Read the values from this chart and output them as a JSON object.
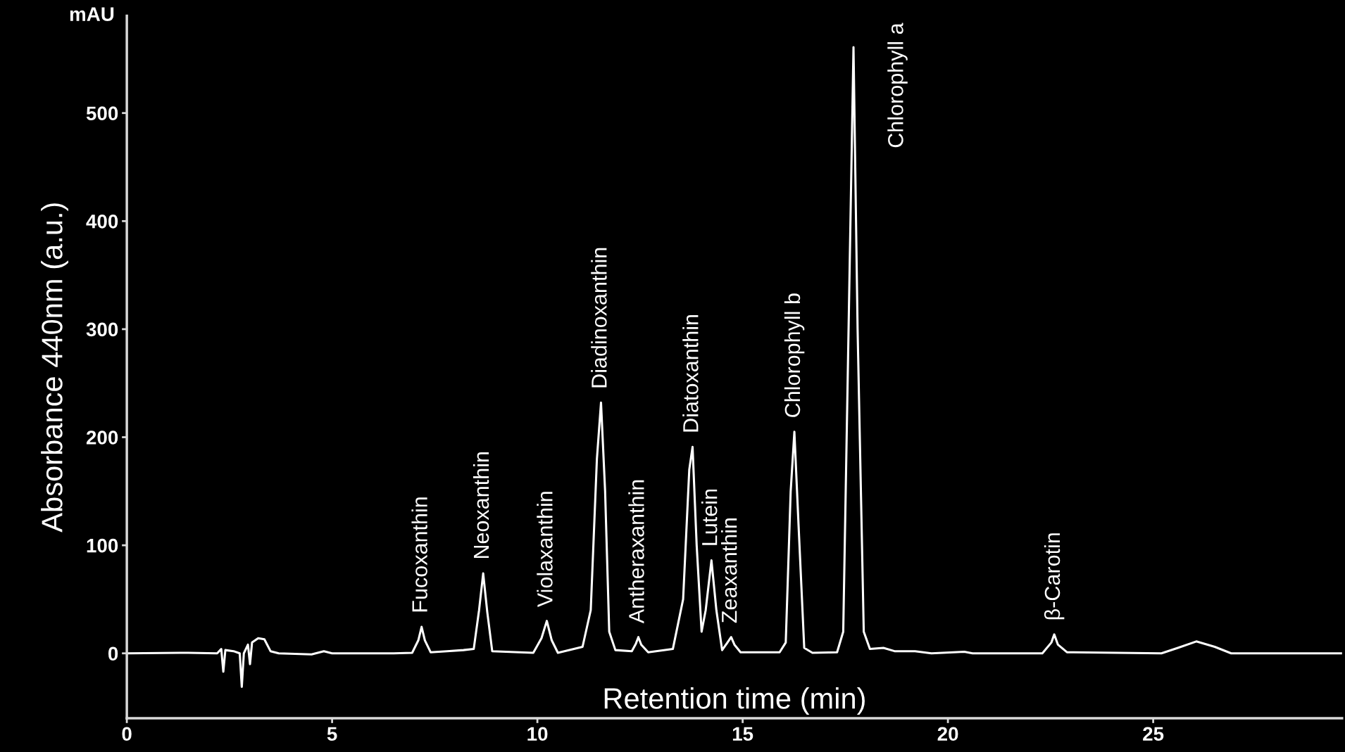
{
  "chart_data": {
    "type": "line",
    "xlabel": "Retention time (min)",
    "ylabel": "Absorbance 440nm (a.u.)",
    "xlim": [
      0,
      29.6
    ],
    "ylim": [
      -60,
      590
    ],
    "xticks": [
      0,
      5,
      10,
      15,
      20,
      25
    ],
    "yticks": [
      0,
      100,
      200,
      300,
      400,
      500
    ],
    "grid": false,
    "legend": false,
    "marker": "none",
    "line_style": "solid",
    "series": [
      {
        "color": "#ffffff",
        "x": [
          0,
          1.5,
          2.2,
          2.3,
          2.35,
          2.4,
          2.6,
          2.75,
          2.8,
          2.85,
          2.95,
          3.0,
          3.05,
          3.2,
          3.35,
          3.5,
          3.7,
          4.5,
          4.8,
          5.0,
          6.5,
          6.95,
          7.1,
          7.18,
          7.26,
          7.4,
          7.8,
          8.2,
          8.45,
          8.58,
          8.68,
          8.78,
          8.9,
          9.9,
          10.1,
          10.23,
          10.35,
          10.5,
          11.1,
          11.3,
          11.45,
          11.55,
          11.65,
          11.75,
          11.9,
          12.3,
          12.4,
          12.46,
          12.53,
          12.7,
          13.3,
          13.55,
          13.7,
          13.78,
          13.88,
          14.0,
          14.1,
          14.24,
          14.36,
          14.5,
          14.63,
          14.72,
          14.8,
          14.95,
          15.9,
          16.05,
          16.17,
          16.26,
          16.36,
          16.5,
          16.7,
          17.3,
          17.45,
          17.58,
          17.7,
          17.8,
          17.95,
          18.1,
          18.43,
          18.7,
          19.2,
          19.6,
          20.4,
          20.6,
          22.3,
          22.52,
          22.59,
          22.68,
          22.9,
          25.2,
          25.6,
          26.05,
          26.5,
          26.9,
          29.6
        ],
        "values": [
          0,
          0.5,
          0,
          4,
          -17,
          3,
          2,
          0,
          -31,
          0,
          8,
          -10,
          10,
          14,
          13,
          2,
          0,
          -1,
          2,
          0,
          0,
          0.5,
          12,
          24.5,
          12,
          1,
          2,
          3,
          4,
          40,
          74,
          38,
          2,
          0.5,
          14,
          30,
          12,
          0.5,
          6,
          40,
          180,
          232,
          150,
          20,
          3,
          2,
          9,
          15,
          8,
          1,
          4,
          50,
          170,
          191,
          100,
          20,
          40,
          86,
          40,
          3,
          10,
          15,
          8,
          1,
          1,
          10,
          150,
          205,
          120,
          5,
          0.5,
          1,
          20,
          300,
          561,
          300,
          20,
          4,
          5,
          2,
          2,
          0,
          1.5,
          0,
          0,
          10,
          17.5,
          8,
          1,
          0,
          5,
          11,
          6,
          0,
          0
        ]
      }
    ],
    "annotations": [
      {
        "text": "Fucoxanthin",
        "x": 7.18,
        "y": 24.5
      },
      {
        "text": "Neoxanthin",
        "x": 8.68,
        "y": 74
      },
      {
        "text": "Violaxanthin",
        "x": 10.23,
        "y": 30
      },
      {
        "text": "Diadinoxanthin",
        "x": 11.55,
        "y": 232
      },
      {
        "text": "Antheraxanthin",
        "x": 12.46,
        "y": 15
      },
      {
        "text": "Diatoxanthin",
        "x": 13.78,
        "y": 191
      },
      {
        "text": "Lutein",
        "x": 14.24,
        "y": 86
      },
      {
        "text": "Zeaxanthin",
        "x": 14.72,
        "y": 15
      },
      {
        "text": "Chlorophyll b",
        "x": 16.26,
        "y": 205
      },
      {
        "text": "Chlorophyll a",
        "x": 17.7,
        "y": 561
      },
      {
        "text": "β-Carotin",
        "x": 22.59,
        "y": 17.5
      },
      "mAU"
    ]
  }
}
